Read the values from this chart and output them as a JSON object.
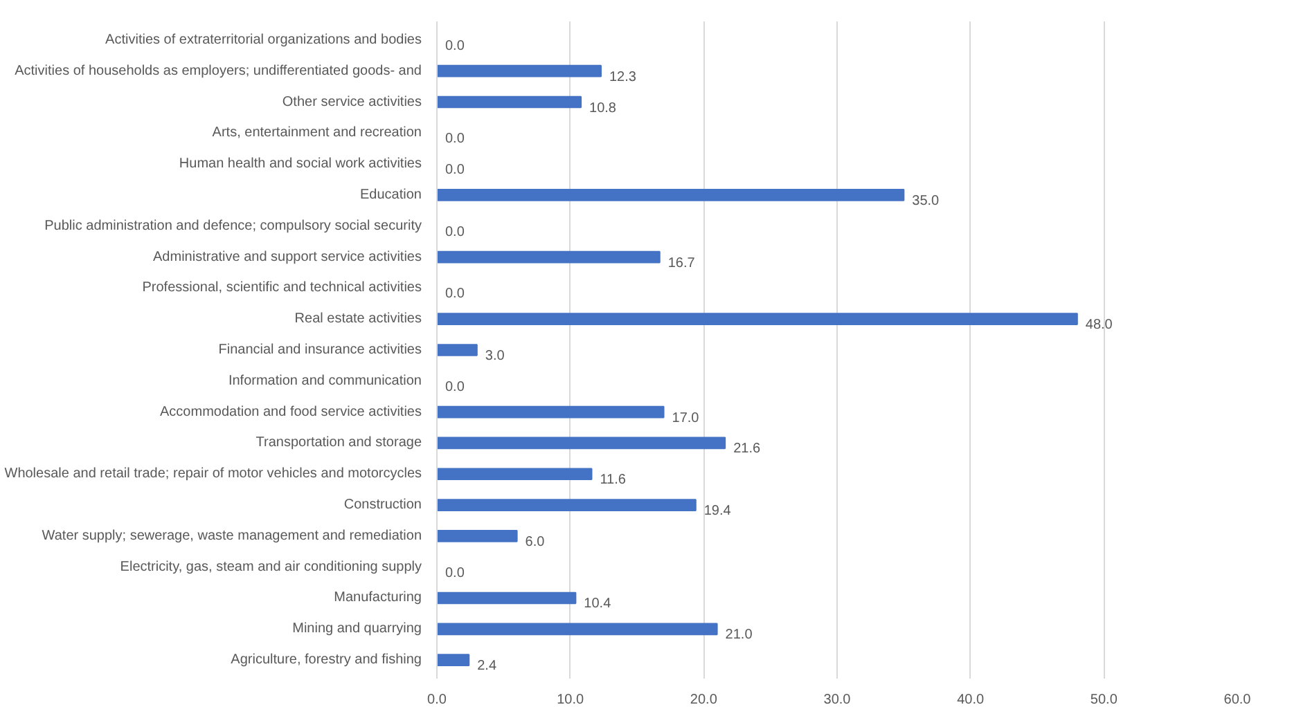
{
  "chart_data": {
    "type": "bar",
    "orientation": "horizontal",
    "categories": [
      "Activities of extraterritorial organizations and bodies",
      "Activities of households as employers; undifferentiated goods- and",
      "Other service activities",
      "Arts, entertainment and recreation",
      "Human health and social work activities",
      "Education",
      "Public administration and defence; compulsory social security",
      "Administrative and support service activities",
      "Professional, scientific and technical activities",
      "Real estate activities",
      "Financial and insurance activities",
      "Information and communication",
      "Accommodation and food service activities",
      "Transportation and storage",
      "Wholesale and retail trade; repair of motor vehicles and motorcycles",
      "Construction",
      "Water supply; sewerage, waste management and remediation",
      "Electricity, gas, steam and air conditioning supply",
      "Manufacturing",
      "Mining and quarrying",
      "Agriculture, forestry and fishing"
    ],
    "values": [
      0.0,
      12.3,
      10.8,
      0.0,
      0.0,
      35.0,
      0.0,
      16.7,
      0.0,
      48.0,
      3.0,
      0.0,
      17.0,
      21.6,
      11.6,
      19.4,
      6.0,
      0.0,
      10.4,
      21.0,
      2.4
    ],
    "value_labels": [
      "0.0",
      "12.3",
      "10.8",
      "0.0",
      "0.0",
      "35.0",
      "0.0",
      "16.7",
      "0.0",
      "48.0",
      "3.0",
      "0.0",
      "17.0",
      "21.6",
      "11.6",
      "19.4",
      "6.0",
      "0.0",
      "10.4",
      "21.0",
      "2.4"
    ],
    "color": "#4472c4",
    "xlim": [
      0,
      60
    ],
    "xticks": [
      {
        "value": 0,
        "label": "0.0"
      },
      {
        "value": 10,
        "label": "10.0"
      },
      {
        "value": 20,
        "label": "20.0"
      },
      {
        "value": 30,
        "label": "30.0"
      },
      {
        "value": 40,
        "label": "40.0"
      },
      {
        "value": 50,
        "label": "50.0"
      },
      {
        "value": 60,
        "label": "60.0"
      }
    ],
    "grid": "x"
  }
}
